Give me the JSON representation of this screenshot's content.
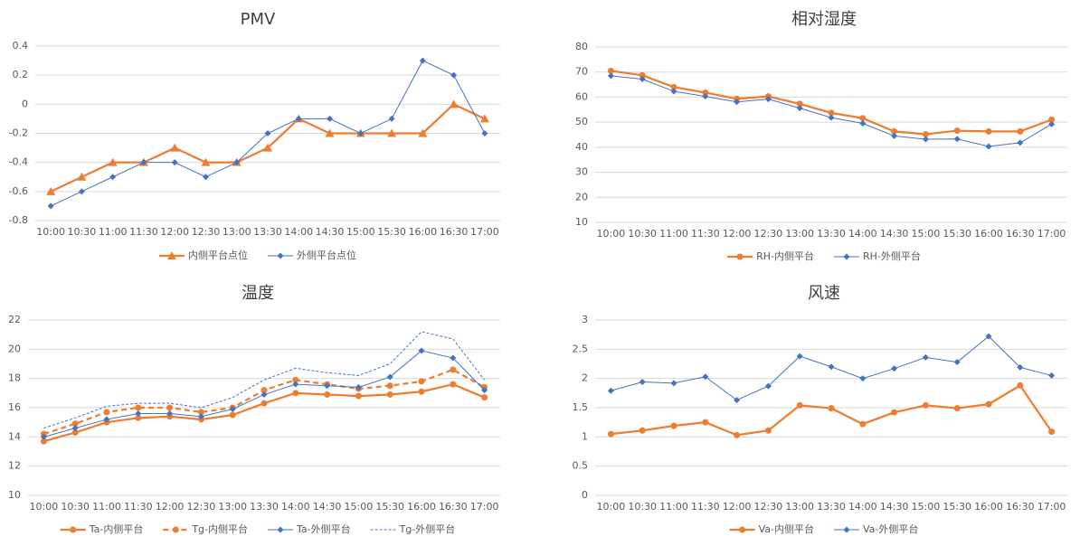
{
  "chart_data": [
    {
      "type": "line",
      "title": "PMV",
      "categories": [
        "10:00",
        "10:30",
        "11:00",
        "11:30",
        "12:00",
        "12:30",
        "13:00",
        "13:30",
        "14:00",
        "14:30",
        "15:00",
        "15:30",
        "16:00",
        "16:30",
        "17:00"
      ],
      "series": [
        {
          "name": "内侧平台点位",
          "color": "#ed7d31",
          "marker": "triangle",
          "dash": false,
          "values": [
            -0.6,
            -0.5,
            -0.4,
            -0.4,
            -0.3,
            -0.4,
            -0.4,
            -0.3,
            -0.1,
            -0.2,
            -0.2,
            -0.2,
            -0.2,
            0,
            -0.1
          ]
        },
        {
          "name": "外侧平台点位",
          "color": "#4472c4",
          "marker": "diamond",
          "dash": false,
          "values": [
            -0.7,
            -0.6,
            -0.5,
            -0.4,
            -0.4,
            -0.5,
            -0.4,
            -0.2,
            -0.1,
            -0.1,
            -0.2,
            -0.1,
            0.3,
            0.2,
            -0.2
          ]
        }
      ],
      "ylim": [
        -0.8,
        0.4
      ],
      "yticks": [
        -0.8,
        -0.6,
        -0.4,
        -0.2,
        0,
        0.2,
        0.4
      ],
      "grid": true,
      "legend": "bottom"
    },
    {
      "type": "line",
      "title": "相对湿度",
      "categories": [
        "10:00",
        "10:30",
        "11:00",
        "11:30",
        "12:00",
        "12:30",
        "13:00",
        "13:30",
        "14:00",
        "14:30",
        "15:00",
        "15:30",
        "16:00",
        "16:30",
        "17:00"
      ],
      "series": [
        {
          "name": "RH-内侧平台",
          "color": "#ed7d31",
          "marker": "circle",
          "dash": false,
          "values": [
            70.5,
            68.7,
            64,
            61.8,
            59.3,
            60.3,
            57.3,
            53.7,
            51.6,
            46.3,
            45.2,
            46.6,
            46.3,
            46.3,
            51
          ]
        },
        {
          "name": "RH-外侧平台",
          "color": "#4472c4",
          "marker": "diamond",
          "dash": false,
          "values": [
            68.5,
            67.2,
            62.3,
            60.3,
            58.1,
            59.2,
            55.6,
            51.8,
            49.5,
            44.5,
            43.2,
            43.3,
            40.3,
            41.8,
            49.2
          ]
        }
      ],
      "ylim": [
        10,
        80
      ],
      "yticks": [
        10,
        20,
        30,
        40,
        50,
        60,
        70,
        80
      ],
      "grid": true,
      "legend": "bottom"
    },
    {
      "type": "line",
      "title": "温度",
      "categories": [
        "10:00",
        "10:30",
        "11:00",
        "11:30",
        "12:00",
        "12:30",
        "13:00",
        "13:30",
        "14:00",
        "14:30",
        "15:00",
        "15:30",
        "16:00",
        "16:30",
        "17:00"
      ],
      "series": [
        {
          "name": "Ta-内侧平台",
          "color": "#ed7d31",
          "marker": "circle",
          "dash": false,
          "values": [
            13.7,
            14.3,
            15.0,
            15.3,
            15.4,
            15.2,
            15.5,
            16.3,
            17.0,
            16.9,
            16.8,
            16.9,
            17.1,
            17.6,
            16.7
          ]
        },
        {
          "name": "Tg-内侧平台",
          "color": "#ed7d31",
          "marker": "circle",
          "dash": true,
          "values": [
            14.2,
            14.9,
            15.7,
            16.0,
            16.0,
            15.7,
            16.0,
            17.2,
            17.9,
            17.6,
            17.3,
            17.5,
            17.8,
            18.6,
            17.4
          ]
        },
        {
          "name": "Ta-外侧平台",
          "color": "#4472c4",
          "marker": "diamond",
          "dash": false,
          "values": [
            14.0,
            14.6,
            15.2,
            15.6,
            15.6,
            15.4,
            15.9,
            16.9,
            17.6,
            17.5,
            17.4,
            18.1,
            19.9,
            19.4,
            17.2
          ]
        },
        {
          "name": "Tg-外侧平台",
          "color": "#4472c4",
          "marker": "none",
          "dash": true,
          "values": [
            14.6,
            15.3,
            16.1,
            16.3,
            16.3,
            16.0,
            16.7,
            17.9,
            18.7,
            18.4,
            18.2,
            19.0,
            21.2,
            20.7,
            17.9
          ]
        }
      ],
      "ylim": [
        10,
        22
      ],
      "yticks": [
        10,
        12,
        14,
        16,
        18,
        20,
        22
      ],
      "grid": true,
      "legend": "bottom"
    },
    {
      "type": "line",
      "title": "风速",
      "categories": [
        "10:00",
        "10:30",
        "11:00",
        "11:30",
        "12:00",
        "12:30",
        "13:00",
        "13:30",
        "14:00",
        "14:30",
        "15:00",
        "15:30",
        "16:00",
        "16:30",
        "17:00"
      ],
      "series": [
        {
          "name": "Va-内侧平台",
          "color": "#ed7d31",
          "marker": "circle",
          "dash": false,
          "values": [
            1.05,
            1.11,
            1.19,
            1.25,
            1.03,
            1.11,
            1.54,
            1.49,
            1.22,
            1.42,
            1.54,
            1.49,
            1.56,
            1.88,
            1.09
          ]
        },
        {
          "name": "Va-外侧平台",
          "color": "#4472c4",
          "marker": "diamond",
          "dash": false,
          "values": [
            1.79,
            1.94,
            1.92,
            2.03,
            1.63,
            1.87,
            2.38,
            2.2,
            2.0,
            2.17,
            2.36,
            2.28,
            2.72,
            2.19,
            2.05
          ]
        }
      ],
      "ylim": [
        0,
        3
      ],
      "yticks": [
        0,
        0.5,
        1,
        1.5,
        2,
        2.5,
        3
      ],
      "grid": true,
      "legend": "bottom"
    }
  ]
}
